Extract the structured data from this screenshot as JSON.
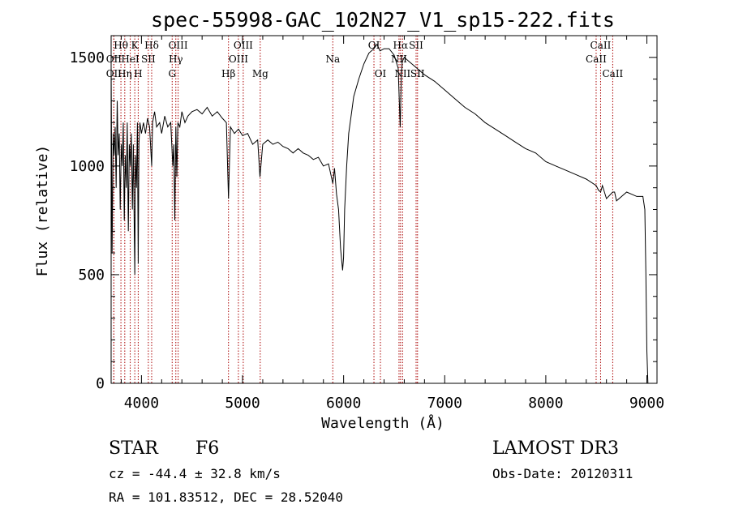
{
  "chart_data": {
    "type": "line",
    "title": "spec-55998-GAC_102N27_V1_sp15-222.fits",
    "xlabel": "Wavelength (Å)",
    "ylabel": "Flux (relative)",
    "xlim": [
      3700,
      9100
    ],
    "ylim": [
      0,
      1600
    ],
    "xticks": [
      4000,
      5000,
      6000,
      7000,
      8000,
      9000
    ],
    "yticks": [
      0,
      500,
      1000,
      1500
    ],
    "grid": false,
    "series": [
      {
        "name": "spectrum",
        "x": [
          3700,
          3710,
          3720,
          3730,
          3740,
          3750,
          3760,
          3770,
          3780,
          3790,
          3800,
          3810,
          3820,
          3830,
          3840,
          3850,
          3860,
          3870,
          3880,
          3890,
          3900,
          3910,
          3920,
          3930,
          3934,
          3940,
          3950,
          3960,
          3968,
          3975,
          3985,
          4000,
          4020,
          4040,
          4060,
          4080,
          4101,
          4110,
          4130,
          4150,
          4180,
          4200,
          4230,
          4260,
          4290,
          4310,
          4320,
          4330,
          4340,
          4350,
          4360,
          4380,
          4400,
          4430,
          4460,
          4500,
          4550,
          4600,
          4650,
          4700,
          4750,
          4800,
          4840,
          4861,
          4880,
          4920,
          4960,
          5000,
          5050,
          5100,
          5150,
          5172,
          5200,
          5250,
          5300,
          5350,
          5400,
          5450,
          5500,
          5550,
          5600,
          5650,
          5700,
          5750,
          5800,
          5850,
          5893,
          5910,
          5930,
          5950,
          5970,
          5990,
          6000,
          6010,
          6030,
          6050,
          6080,
          6100,
          6150,
          6200,
          6250,
          6300,
          6330,
          6360,
          6400,
          6450,
          6500,
          6540,
          6560,
          6563,
          6570,
          6580,
          6600,
          6650,
          6700,
          6750,
          6800,
          6900,
          7000,
          7100,
          7200,
          7300,
          7400,
          7500,
          7600,
          7700,
          7800,
          7900,
          8000,
          8100,
          8200,
          8300,
          8400,
          8498,
          8520,
          8542,
          8560,
          8600,
          8662,
          8680,
          8700,
          8750,
          8800,
          8850,
          8900,
          8960,
          8980,
          8990,
          9000,
          9010
        ],
        "values": [
          1450,
          600,
          1150,
          1050,
          1180,
          900,
          1300,
          1050,
          1150,
          800,
          1100,
          1000,
          1200,
          750,
          1050,
          900,
          1200,
          700,
          1100,
          1000,
          1150,
          800,
          1100,
          650,
          500,
          1050,
          900,
          1200,
          550,
          1100,
          1200,
          1150,
          1200,
          1150,
          1220,
          1180,
          1000,
          1200,
          1250,
          1180,
          1200,
          1150,
          1230,
          1180,
          1200,
          1000,
          1100,
          750,
          1180,
          950,
          1200,
          1180,
          1250,
          1200,
          1230,
          1250,
          1260,
          1240,
          1270,
          1230,
          1250,
          1220,
          1200,
          850,
          1180,
          1150,
          1170,
          1140,
          1150,
          1100,
          1120,
          950,
          1100,
          1120,
          1100,
          1110,
          1090,
          1080,
          1060,
          1080,
          1060,
          1050,
          1030,
          1040,
          1000,
          1010,
          920,
          990,
          870,
          800,
          620,
          520,
          580,
          800,
          1000,
          1150,
          1250,
          1320,
          1400,
          1470,
          1520,
          1540,
          1560,
          1530,
          1540,
          1540,
          1510,
          1450,
          1180,
          1250,
          1400,
          1480,
          1500,
          1480,
          1460,
          1440,
          1420,
          1390,
          1350,
          1310,
          1270,
          1240,
          1200,
          1170,
          1140,
          1110,
          1080,
          1060,
          1020,
          1000,
          980,
          960,
          940,
          910,
          890,
          880,
          910,
          850,
          880,
          880,
          840,
          860,
          880,
          870,
          860,
          860,
          800,
          500,
          150,
          0
        ]
      }
    ],
    "line_markers": [
      {
        "name": "Hθ",
        "x": 3797,
        "row": 1
      },
      {
        "name": "OII",
        "x": 3727,
        "row": 2
      },
      {
        "name": "OII",
        "x": 3727,
        "row": 3
      },
      {
        "name": "Hη",
        "x": 3835,
        "row": 3
      },
      {
        "name": "K",
        "x": 3934,
        "row": 1
      },
      {
        "name": "HeI",
        "x": 3889,
        "row": 2
      },
      {
        "name": "H",
        "x": 3968,
        "row": 3
      },
      {
        "name": "Hδ",
        "x": 4101,
        "row": 1
      },
      {
        "name": "SII",
        "x": 4068,
        "row": 2
      },
      {
        "name": "OIII",
        "x": 4363,
        "row": 1
      },
      {
        "name": "Hγ",
        "x": 4340,
        "row": 2
      },
      {
        "name": "G",
        "x": 4304,
        "row": 3
      },
      {
        "name": "Hβ",
        "x": 4861,
        "row": 3
      },
      {
        "name": "OIII",
        "x": 4959,
        "row": 2
      },
      {
        "name": "OIII",
        "x": 5007,
        "row": 1
      },
      {
        "name": "Mg",
        "x": 5175,
        "row": 3
      },
      {
        "name": "Na",
        "x": 5893,
        "row": 2
      },
      {
        "name": "OI",
        "x": 6300,
        "row": 1
      },
      {
        "name": "OI",
        "x": 6364,
        "row": 3
      },
      {
        "name": "Hα",
        "x": 6563,
        "row": 1
      },
      {
        "name": "NII",
        "x": 6548,
        "row": 2
      },
      {
        "name": "NII",
        "x": 6583,
        "row": 3
      },
      {
        "name": "SII",
        "x": 6717,
        "row": 1
      },
      {
        "name": "SII",
        "x": 6731,
        "row": 3
      },
      {
        "name": "CaII",
        "x": 8542,
        "row": 1
      },
      {
        "name": "CaII",
        "x": 8498,
        "row": 2
      },
      {
        "name": "CaII",
        "x": 8662,
        "row": 3
      }
    ],
    "marker_color": "#aa0000",
    "line_color": "#000000"
  },
  "info": {
    "object_type": "STAR",
    "subclass": "F6",
    "survey": "LAMOST DR3",
    "redshift": "cz = -44.4 ± 32.8 km/s",
    "obs_date": "Obs-Date: 20120311",
    "coords": "RA = 101.83512, DEC =  28.52040"
  }
}
